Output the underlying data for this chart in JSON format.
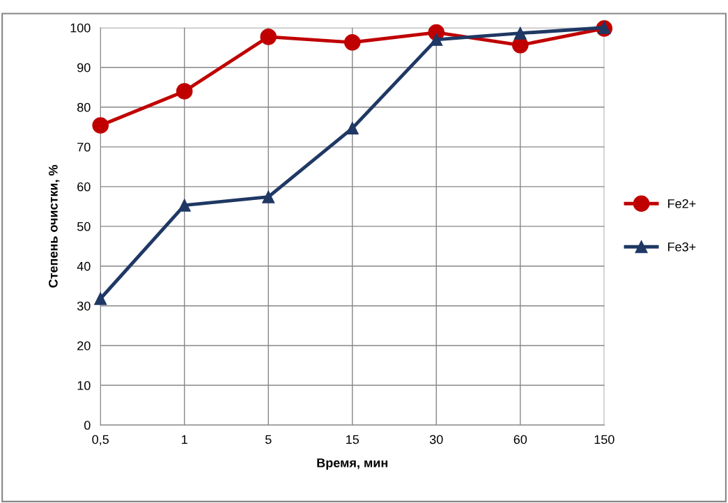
{
  "chart_data": {
    "type": "line",
    "xlabel": "Время, мин",
    "ylabel": "Степень очистки, %",
    "categories": [
      "0,5",
      "1",
      "5",
      "15",
      "30",
      "60",
      "150"
    ],
    "series": [
      {
        "name": "Fe2+",
        "color": "#c00000",
        "marker": "circle",
        "values": [
          75.4,
          84,
          97.7,
          96.3,
          98.8,
          95.6,
          99.8
        ]
      },
      {
        "name": "Fe3+",
        "color": "#1f3864",
        "marker": "triangle",
        "values": [
          31.8,
          55.3,
          57.4,
          74.7,
          97,
          98.6,
          100
        ]
      }
    ],
    "ylim": [
      0,
      100
    ],
    "yticks": [
      0,
      10,
      20,
      30,
      40,
      50,
      60,
      70,
      80,
      90,
      100
    ],
    "grid": true,
    "legend": "right"
  }
}
